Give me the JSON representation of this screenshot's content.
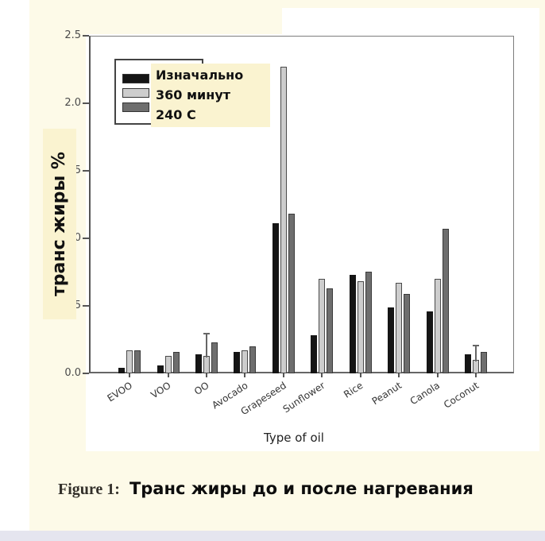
{
  "page": {
    "background": "#FDFAE8",
    "left_strip_color": "#FFFFFF",
    "bottom_strip_color": "#E5E5EF",
    "panel_color": "#FFFFFF",
    "highlight_color": "#FAF3D0"
  },
  "chart_data": {
    "type": "bar",
    "title": "",
    "categories": [
      "EVOO",
      "VOO",
      "OO",
      "Avocado",
      "Grapeseed",
      "Sunflower",
      "Rice",
      "Peanut",
      "Canola",
      "Coconut"
    ],
    "series": [
      {
        "name": "Изначально",
        "fill": "#151515",
        "stroke": "#151515",
        "values": [
          0.04,
          0.06,
          0.14,
          0.16,
          1.11,
          0.28,
          0.73,
          0.49,
          0.46,
          0.14
        ]
      },
      {
        "name": "360 минут",
        "fill": "#CDCDCD",
        "stroke": "#4a4a4a",
        "values": [
          0.17,
          0.13,
          0.13,
          0.17,
          2.27,
          0.7,
          0.68,
          0.67,
          0.7,
          0.1
        ]
      },
      {
        "name": "240 C",
        "fill": "#6E6E6E",
        "stroke": "#3a3a3a",
        "values": [
          0.17,
          0.16,
          0.23,
          0.2,
          1.18,
          0.63,
          0.75,
          0.59,
          1.07,
          0.16
        ]
      }
    ],
    "error_bars": [
      {
        "category": "OO",
        "series": "360 минут",
        "top": 0.3
      },
      {
        "category": "Coconut",
        "series": "360 минут",
        "top": 0.21
      }
    ],
    "xlabel": "Type of oil",
    "ylabel": "транс жиры %",
    "ylim": [
      0,
      2.5
    ],
    "yticks": [
      "0.0",
      "0.5",
      "1.0",
      "1.5",
      "2.0",
      "2.5"
    ],
    "legend_position": "upper-left",
    "grid": false
  },
  "legend": {
    "items": [
      {
        "label": "Изначально",
        "color": "#151515"
      },
      {
        "label": "360 минут",
        "color": "#CDCDCD"
      },
      {
        "label": "240 C",
        "color": "#6E6E6E"
      }
    ]
  },
  "caption": {
    "label": "Figure 1:",
    "text": "Транс жиры до и после нагревания"
  }
}
